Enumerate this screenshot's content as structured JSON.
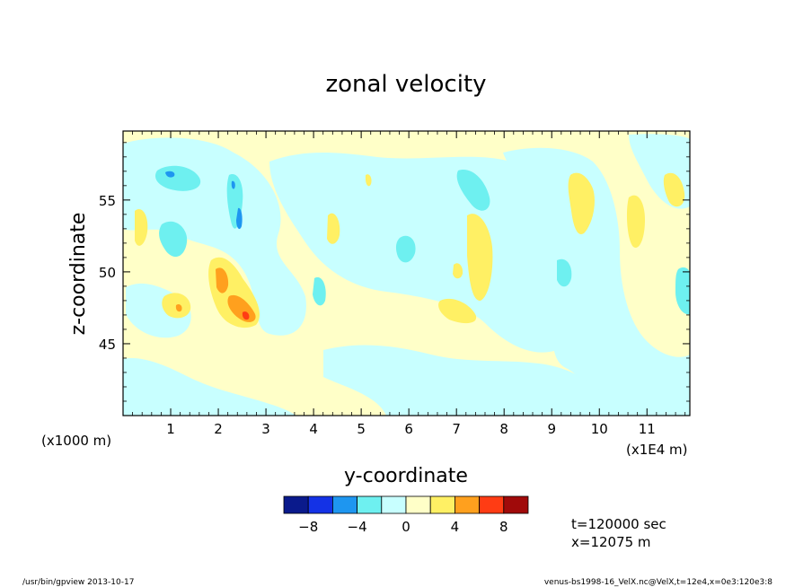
{
  "chart_data": {
    "type": "heatmap",
    "title": "zonal velocity",
    "xlabel": "y-coordinate",
    "ylabel": "z-coordinate",
    "x_units_left": "(x1000 m)",
    "x_units_right": "(x1E4 m)",
    "x_tick_labels": [
      "1",
      "2",
      "3",
      "4",
      "5",
      "6",
      "7",
      "8",
      "9",
      "10",
      "11"
    ],
    "y_tick_labels": [
      "45",
      "50",
      "55"
    ],
    "xlim": [
      0,
      11.9
    ],
    "ylim": [
      40,
      59.8
    ],
    "colorbar": {
      "levels": [
        -10,
        -8,
        -6,
        -4,
        -2,
        0,
        2,
        4,
        6,
        8,
        10
      ],
      "tick_labels": [
        "-8",
        "-4",
        "0",
        "4",
        "8"
      ],
      "colors": [
        "#0a1a8c",
        "#1432e6",
        "#1e96f0",
        "#6ef0f0",
        "#c8ffff",
        "#ffffc8",
        "#fff064",
        "#ffa01e",
        "#ff3c14",
        "#a00a0a"
      ]
    },
    "background_color": "#ffffc8",
    "info_lines": [
      "t=120000 sec",
      "x=12075 m"
    ]
  },
  "footer": {
    "left": "/usr/bin/gpview  2013-10-17",
    "right": "venus-bs1998-16_VelX.nc@VelX,t=12e4,x=0e3:120e3:8"
  }
}
